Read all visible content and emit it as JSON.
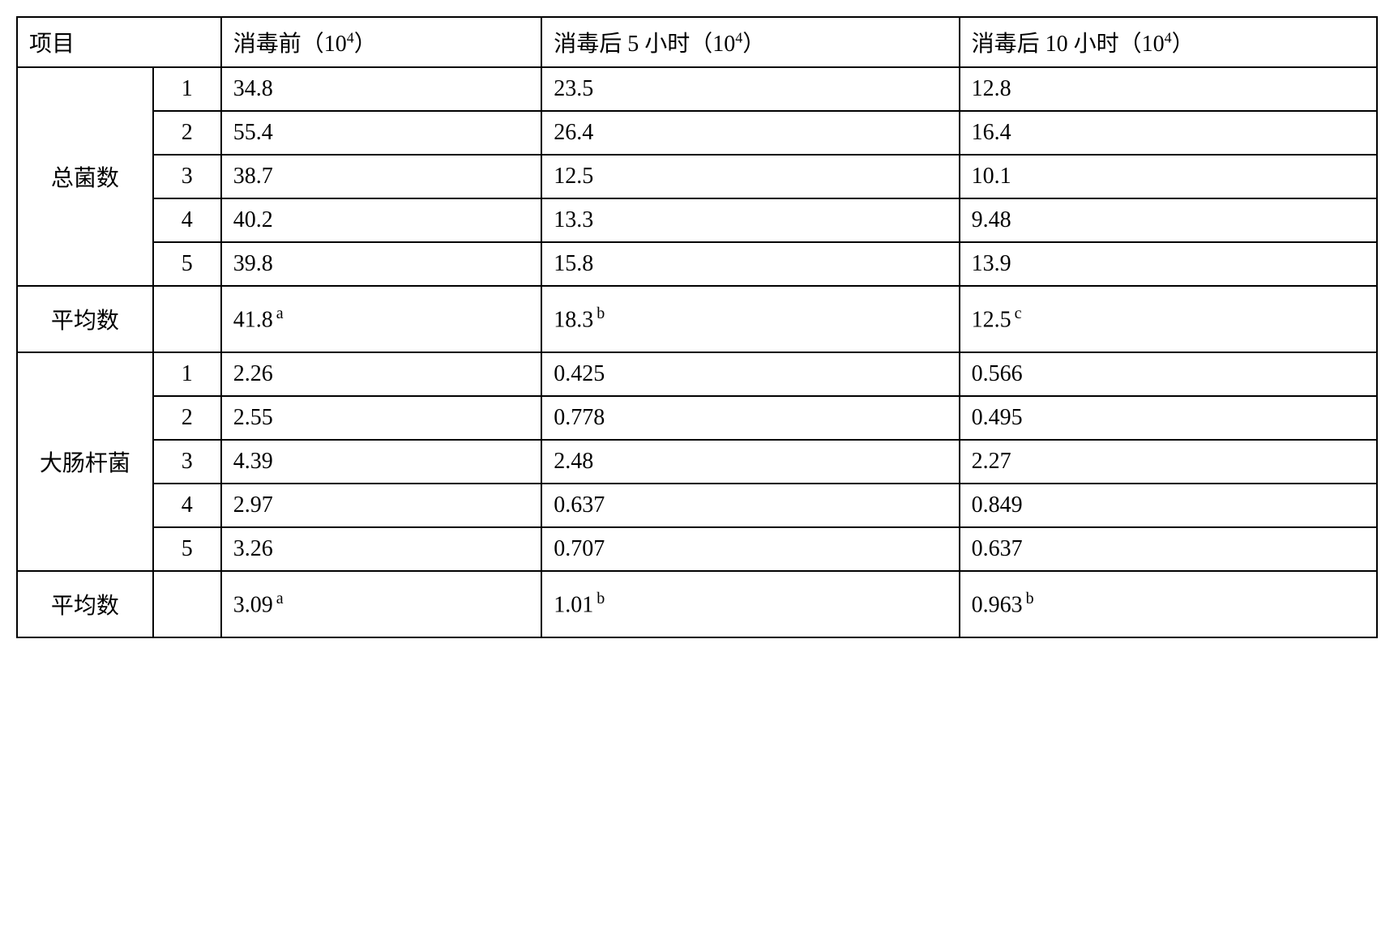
{
  "headers": {
    "item": "项目",
    "before": "消毒前（10",
    "before_sup": "4",
    "before_close": "）",
    "after5": "消毒后 5 小时（10",
    "after5_sup": "4",
    "after5_close": "）",
    "after10": "消毒后 10 小时（10",
    "after10_sup": "4",
    "after10_close": "）"
  },
  "section1": {
    "label": "总菌数",
    "rows": [
      {
        "n": "1",
        "before": "34.8",
        "after5": "23.5",
        "after10": "12.8"
      },
      {
        "n": "2",
        "before": "55.4",
        "after5": "26.4",
        "after10": "16.4"
      },
      {
        "n": "3",
        "before": "38.7",
        "after5": "12.5",
        "after10": "10.1"
      },
      {
        "n": "4",
        "before": "40.2",
        "after5": "13.3",
        "after10": "9.48"
      },
      {
        "n": "5",
        "before": "39.8",
        "after5": "15.8",
        "after10": "13.9"
      }
    ],
    "avg_label": "平均数",
    "avg": {
      "before": "41.8",
      "before_sup": "a",
      "after5": "18.3",
      "after5_sup": "b",
      "after10": "12.5",
      "after10_sup": "c"
    }
  },
  "section2": {
    "label": "大肠杆菌",
    "rows": [
      {
        "n": "1",
        "before": "2.26",
        "after5": "0.425",
        "after10": "0.566"
      },
      {
        "n": "2",
        "before": "2.55",
        "after5": "0.778",
        "after10": "0.495"
      },
      {
        "n": "3",
        "before": "4.39",
        "after5": "2.48",
        "after10": "2.27"
      },
      {
        "n": "4",
        "before": "2.97",
        "after5": "0.637",
        "after10": "0.849"
      },
      {
        "n": "5",
        "before": "3.26",
        "after5": "0.707",
        "after10": "0.637"
      }
    ],
    "avg_label": "平均数",
    "avg": {
      "before": "3.09",
      "before_sup": "a",
      "after5": "1.01",
      "after5_sup": "b",
      "after10": "0.963",
      "after10_sup": "b"
    }
  },
  "style": {
    "border_color": "#000000",
    "background_color": "#ffffff",
    "font_size_main": 28,
    "font_size_sup": 18,
    "border_width": 2
  }
}
